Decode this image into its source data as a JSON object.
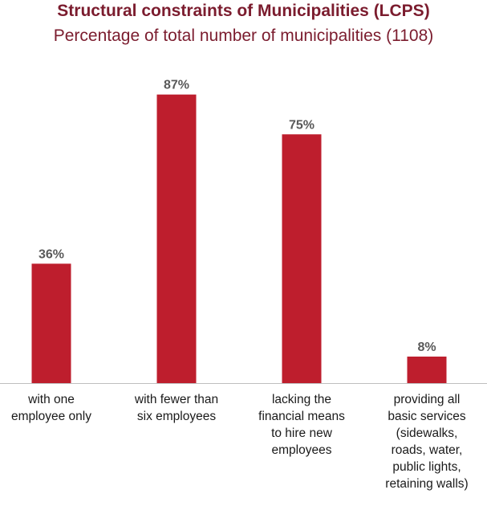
{
  "chart_data": {
    "type": "bar",
    "title": "Structural constraints of Municipalities (LCPS)",
    "subtitle": "Percentage of total number of municipalities (1108)",
    "categories": [
      "with one\nemployee only",
      "with fewer than\nsix employees",
      "lacking the\nfinancial means\nto hire new\nemployees",
      "providing all\nbasic services\n(sidewalks,\nroads, water,\npublic lights,\nretaining walls)"
    ],
    "values": [
      36,
      87,
      75,
      8
    ],
    "value_labels": [
      "36%",
      "87%",
      "75%",
      "8%"
    ],
    "xlabel": "",
    "ylabel": "",
    "ylim": [
      0,
      100
    ],
    "grid": false,
    "legend": "none",
    "colors": {
      "bar": "#be1e2d",
      "title": "#7b1c2e",
      "subtitle": "#7b1c2e",
      "value_label": "#595959",
      "axis": "#bfbfbf"
    }
  }
}
